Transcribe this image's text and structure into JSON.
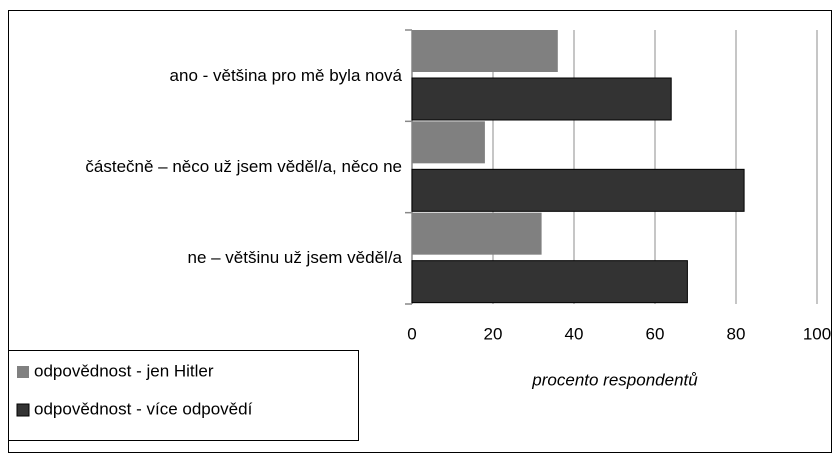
{
  "chart_data": {
    "type": "bar",
    "orientation": "horizontal",
    "categories": [
      "ano - většina pro mě byla nová",
      "částečně – něco už jsem věděl/a, něco ne",
      "ne – většinu už jsem věděl/a"
    ],
    "series": [
      {
        "name": "odpovědnost - jen Hitler",
        "color": "#808080",
        "values": [
          36,
          18,
          32
        ]
      },
      {
        "name": "odpovědnost - více odpovědí",
        "color": "#333333",
        "values": [
          64,
          82,
          68
        ]
      }
    ],
    "xlabel": "procento respondentů",
    "xlim": [
      0,
      100
    ],
    "xticks": [
      0,
      20,
      40,
      60,
      80,
      100
    ],
    "grid": true,
    "legend": "lower left"
  }
}
